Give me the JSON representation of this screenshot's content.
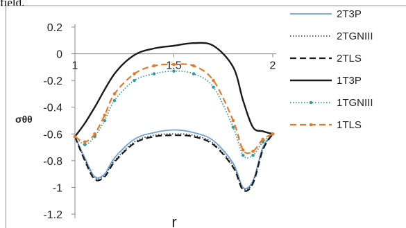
{
  "caption_fragment": "field.",
  "chart_data": {
    "type": "line",
    "title": "",
    "xlabel": "r",
    "ylabel": "σθθ",
    "xlim": [
      1,
      2
    ],
    "ylim": [
      -1.2,
      0.2
    ],
    "yticks": [
      "0.2",
      "0",
      "-0.2",
      "-0.4",
      "-0.6",
      "-0.8",
      "-1",
      "-1.2"
    ],
    "xticks": [
      "1",
      "1.5",
      "2"
    ],
    "grid": false,
    "legend": "right",
    "series": [
      {
        "name": "2T3P",
        "color": "#6fa0d8",
        "style": "solid",
        "x": [
          1.0,
          1.05,
          1.1,
          1.15,
          1.2,
          1.3,
          1.4,
          1.5,
          1.6,
          1.7,
          1.8,
          1.85,
          1.9,
          1.95,
          2.0
        ],
        "y": [
          -0.62,
          -0.78,
          -0.92,
          -0.9,
          -0.78,
          -0.64,
          -0.59,
          -0.57,
          -0.59,
          -0.65,
          -0.82,
          -1.0,
          -0.95,
          -0.7,
          -0.6
        ]
      },
      {
        "name": "2TGNIII",
        "color": "#444444",
        "style": "dotted",
        "x": [
          1.0,
          1.05,
          1.1,
          1.15,
          1.2,
          1.3,
          1.4,
          1.5,
          1.6,
          1.7,
          1.8,
          1.85,
          1.9,
          1.95,
          2.0
        ],
        "y": [
          -0.62,
          -0.79,
          -0.93,
          -0.91,
          -0.8,
          -0.66,
          -0.61,
          -0.6,
          -0.61,
          -0.67,
          -0.84,
          -1.01,
          -0.96,
          -0.71,
          -0.6
        ]
      },
      {
        "name": "2TLS",
        "color": "#1a1a1a",
        "style": "dashed",
        "x": [
          1.0,
          1.05,
          1.1,
          1.15,
          1.2,
          1.3,
          1.4,
          1.5,
          1.6,
          1.7,
          1.8,
          1.85,
          1.9,
          1.95,
          2.0
        ],
        "y": [
          -0.62,
          -0.8,
          -0.94,
          -0.92,
          -0.81,
          -0.67,
          -0.62,
          -0.61,
          -0.62,
          -0.68,
          -0.85,
          -1.02,
          -0.97,
          -0.72,
          -0.6
        ]
      },
      {
        "name": "1T3P",
        "color": "#1a1a1a",
        "style": "solid",
        "x": [
          1.0,
          1.05,
          1.1,
          1.2,
          1.3,
          1.4,
          1.5,
          1.6,
          1.7,
          1.8,
          1.85,
          1.9,
          1.95,
          2.0
        ],
        "y": [
          -0.62,
          -0.52,
          -0.4,
          -0.15,
          -0.01,
          0.04,
          0.06,
          0.08,
          0.06,
          -0.1,
          -0.35,
          -0.55,
          -0.58,
          -0.6
        ]
      },
      {
        "name": "1TGNIII",
        "color": "#3a9a9a",
        "style": "dotted-marker",
        "x": [
          1.0,
          1.05,
          1.1,
          1.15,
          1.2,
          1.3,
          1.4,
          1.5,
          1.6,
          1.7,
          1.8,
          1.85,
          1.9,
          1.95,
          2.0
        ],
        "y": [
          -0.62,
          -0.68,
          -0.62,
          -0.5,
          -0.35,
          -0.2,
          -0.15,
          -0.13,
          -0.15,
          -0.25,
          -0.55,
          -0.76,
          -0.76,
          -0.66,
          -0.6
        ]
      },
      {
        "name": "1TLS",
        "color": "#e07b2c",
        "style": "dashed-marker",
        "x": [
          1.0,
          1.05,
          1.1,
          1.15,
          1.2,
          1.3,
          1.4,
          1.5,
          1.6,
          1.7,
          1.8,
          1.85,
          1.9,
          1.95,
          2.0
        ],
        "y": [
          -0.62,
          -0.66,
          -0.6,
          -0.46,
          -0.3,
          -0.15,
          -0.09,
          -0.08,
          -0.09,
          -0.2,
          -0.5,
          -0.72,
          -0.73,
          -0.64,
          -0.6
        ]
      }
    ]
  }
}
